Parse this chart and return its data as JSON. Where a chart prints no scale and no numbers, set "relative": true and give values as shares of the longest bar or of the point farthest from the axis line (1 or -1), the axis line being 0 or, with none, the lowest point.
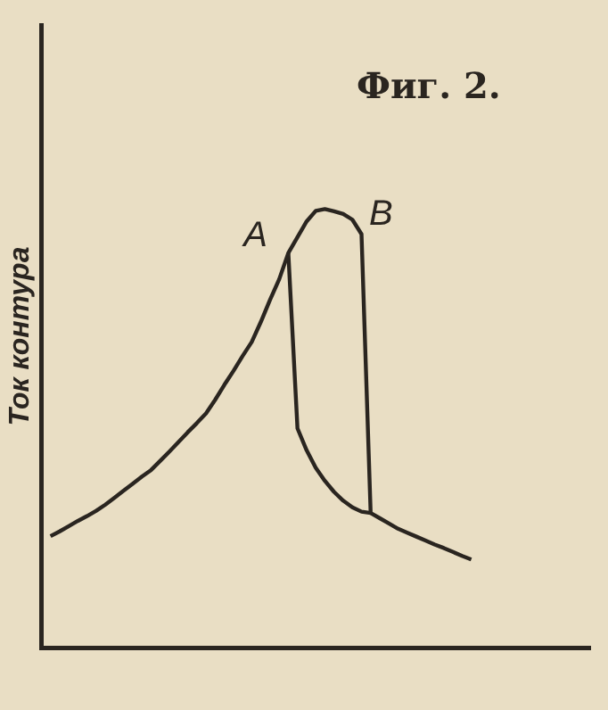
{
  "chart_data": {
    "type": "line",
    "title": "Фиг. 2.",
    "ylabel": "Ток контура",
    "relative": true,
    "grid": false,
    "legend": false,
    "marker": "none",
    "line_style": "solid",
    "categories": [
      null,
      null,
      null,
      null,
      null,
      null,
      null,
      null,
      null,
      null,
      null,
      null,
      null,
      null,
      null,
      null,
      null,
      null,
      null,
      null,
      null,
      null,
      null,
      null,
      null,
      null,
      null,
      null,
      null,
      null,
      null,
      null,
      null,
      null,
      null,
      null,
      null,
      null,
      null,
      null,
      null,
      null,
      null,
      null,
      null,
      null,
      null,
      null,
      null,
      null,
      null,
      null,
      null,
      null,
      null,
      null,
      null,
      null,
      null,
      null,
      null
    ],
    "series": [
      {
        "color": "#2a2520",
        "values": [
          null,
          0.254,
          0.265,
          0.277,
          0.289,
          0.3,
          0.312,
          0.326,
          0.342,
          0.358,
          0.374,
          0.39,
          0.405,
          0.426,
          0.447,
          0.469,
          0.491,
          0.512,
          0.534,
          0.565,
          0.599,
          0.631,
          0.665,
          0.697,
          0.743,
          0.793,
          0.84,
          0.9,
          0.936,
          0.972,
          0.996,
          1,
          0.995,
          0.989,
          0.976,
          0.943,
          0.307,
          0.295,
          0.283,
          0.271,
          0.262,
          0.253,
          0.244,
          0.235,
          0.227,
          0.218,
          0.209,
          0.201,
          null,
          null,
          null,
          null,
          null,
          null,
          null,
          null,
          null,
          null,
          null,
          null,
          null
        ]
      },
      {
        "color": "#2a2520",
        "values": [
          null,
          null,
          null,
          null,
          null,
          null,
          null,
          null,
          null,
          null,
          null,
          null,
          null,
          null,
          null,
          null,
          null,
          null,
          null,
          null,
          null,
          null,
          null,
          null,
          null,
          null,
          null,
          0.9,
          0.5,
          0.45,
          0.41,
          0.38,
          0.355,
          0.335,
          0.32,
          0.31,
          0.307,
          null,
          null,
          null,
          null,
          null,
          null,
          null,
          null,
          null,
          null,
          null,
          null,
          null,
          null,
          null,
          null,
          null,
          null,
          null,
          null,
          null,
          null,
          null,
          null
        ]
      }
    ],
    "annotations": [
      "A",
      "B"
    ]
  }
}
